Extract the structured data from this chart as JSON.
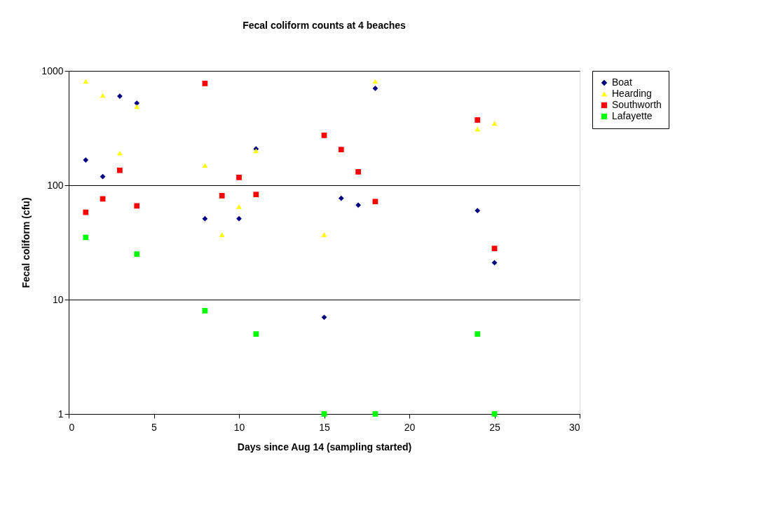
{
  "chart_data": {
    "type": "scatter",
    "title": "Fecal coliform counts at 4 beaches",
    "xlabel": "Days since Aug 14 (sampling started)",
    "ylabel": "Fecal coliform (cfu)",
    "series": [
      {
        "name": "Boat",
        "color": "#000080",
        "marker": "diamond",
        "x": [
          1,
          2,
          3,
          4,
          8,
          10,
          11,
          15,
          16,
          17,
          18,
          24,
          25
        ],
        "values": [
          166,
          119,
          601,
          522,
          51,
          51,
          208,
          7,
          77,
          67,
          703,
          60,
          21
        ]
      },
      {
        "name": "Hearding",
        "color": "#ffff00",
        "marker": "triangle",
        "x": [
          1,
          2,
          3,
          4,
          8,
          9,
          10,
          11,
          15,
          18,
          24,
          25
        ],
        "values": [
          809,
          610,
          191,
          487,
          149,
          37,
          65,
          200,
          37,
          809,
          310,
          347
        ]
      },
      {
        "name": "Southworth",
        "color": "#ff0000",
        "marker": "square",
        "x": [
          1,
          2,
          3,
          4,
          8,
          9,
          10,
          11,
          15,
          16,
          17,
          18,
          24,
          25
        ],
        "values": [
          58,
          76,
          135,
          66,
          776,
          81,
          117,
          83,
          273,
          205,
          131,
          72,
          372,
          28
        ]
      },
      {
        "name": "Lafayette",
        "color": "#00ff00",
        "marker": "square",
        "x": [
          1,
          4,
          8,
          11,
          15,
          18,
          24,
          25
        ],
        "values": [
          35,
          25,
          8,
          5,
          1,
          1,
          5,
          1
        ]
      }
    ],
    "xlim": [
      0,
      30
    ],
    "xticks": [
      0,
      5,
      10,
      15,
      20,
      25,
      30
    ],
    "ylim": [
      1,
      1000
    ],
    "yticks": [
      1,
      10,
      100,
      1000
    ],
    "log": "y",
    "grid": "y",
    "legend": "right"
  }
}
